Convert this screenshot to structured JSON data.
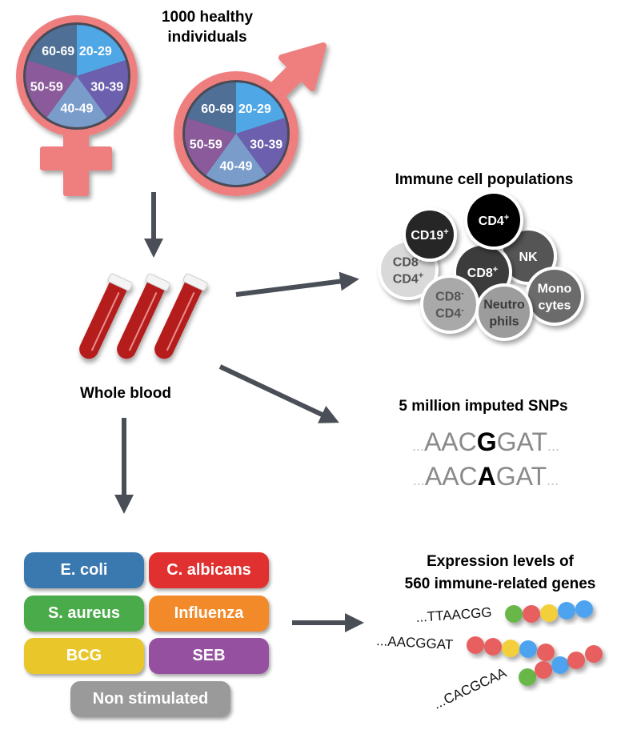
{
  "cohort": {
    "title_line1": "1000 healthy",
    "title_line2": "individuals",
    "age_groups": [
      "20-29",
      "30-39",
      "40-49",
      "50-59",
      "60-69"
    ],
    "age_colors": [
      "#4fa7e6",
      "#6b5fae",
      "#7a9ccb",
      "#8a5a9a",
      "#4f6f96"
    ],
    "symbol_color": "#ef7f7f"
  },
  "whole_blood": {
    "label": "Whole blood",
    "tube_color": "#b51e1a"
  },
  "immune": {
    "title": "Immune cell populations",
    "cells": [
      {
        "name": "cd19-pos",
        "lines": [
          [
            "CD19",
            "+"
          ]
        ],
        "fill": "#262626",
        "text": "#ffffff"
      },
      {
        "name": "cd4-pos",
        "lines": [
          [
            "CD4",
            "+"
          ]
        ],
        "fill": "#000000",
        "text": "#ffffff"
      },
      {
        "name": "nk",
        "lines": [
          [
            "NK",
            ""
          ]
        ],
        "fill": "#555555",
        "text": "#ffffff"
      },
      {
        "name": "cd8-pos-cd4-pos",
        "lines": [
          [
            "CD8",
            "+"
          ],
          [
            "CD4",
            "+"
          ]
        ],
        "fill": "#d9d9d9",
        "text": "#555555"
      },
      {
        "name": "cd8-pos",
        "lines": [
          [
            "CD8",
            "+"
          ]
        ],
        "fill": "#3c3c3c",
        "text": "#ffffff"
      },
      {
        "name": "cd8-neg-cd4-neg",
        "lines": [
          [
            "CD8",
            "-"
          ],
          [
            "CD4",
            "-"
          ]
        ],
        "fill": "#a9a9a9",
        "text": "#555555"
      },
      {
        "name": "neutrophils",
        "lines": [
          [
            "Neutro",
            ""
          ],
          [
            "phils",
            ""
          ]
        ],
        "fill": "#9c9c9c",
        "text": "#3a3a3a"
      },
      {
        "name": "monocytes",
        "lines": [
          [
            "Mono",
            ""
          ],
          [
            "cytes",
            ""
          ]
        ],
        "fill": "#6b6b6b",
        "text": "#ffffff"
      }
    ]
  },
  "snps": {
    "title": "5 million imputed SNPs",
    "sequences": [
      {
        "pre": "...",
        "left": "AAC",
        "variant": "G",
        "right": "GAT",
        "post": "..."
      },
      {
        "pre": "...",
        "left": "AAC",
        "variant": "A",
        "right": "GAT",
        "post": "..."
      }
    ]
  },
  "expression": {
    "title_line1": "Expression levels of",
    "title_line2": "560 immune-related genes",
    "genes": [
      {
        "sequence": "...TTAACGG",
        "beads": [
          "green",
          "red",
          "yellow",
          "blue",
          "blue"
        ]
      },
      {
        "sequence": "...AACGGAT",
        "beads": [
          "red",
          "red",
          "yellow",
          "blue",
          "red"
        ]
      },
      {
        "sequence": "...CACGCAA",
        "beads": [
          "green",
          "red",
          "blue",
          "red",
          "red"
        ]
      }
    ],
    "bead_colors": {
      "green": "#6ab74a",
      "red": "#e85f5f",
      "yellow": "#f2cf3b",
      "blue": "#4ea3ef"
    }
  },
  "stimuli": [
    {
      "label": "E. coli",
      "color": "#3a78b0"
    },
    {
      "label": "C. albicans",
      "color": "#e0302f"
    },
    {
      "label": "S. aureus",
      "color": "#4aab4a"
    },
    {
      "label": "Influenza",
      "color": "#f38a2a"
    },
    {
      "label": "BCG",
      "color": "#e9c72b"
    },
    {
      "label": "SEB",
      "color": "#9650a0"
    },
    {
      "label": "Non stimulated",
      "color": "#9a9a9a"
    }
  ],
  "arrow_color": "#4a4f57"
}
